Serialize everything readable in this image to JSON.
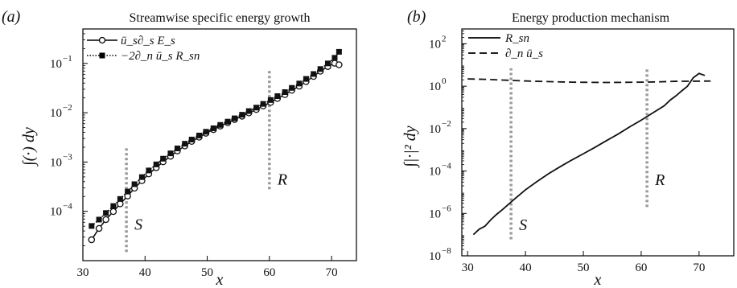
{
  "chart_data": [
    {
      "panel": "(a)",
      "type": "line",
      "title": "Streamwise specific energy growth",
      "xlabel": "x",
      "ylabel": "∫(·) dy",
      "xlim": [
        30,
        74
      ],
      "ylim": [
        1e-05,
        0.5
      ],
      "yscale": "log",
      "xticks": [
        30,
        40,
        50,
        60,
        70
      ],
      "yticks": [
        0.0001,
        0.001,
        0.01,
        0.1
      ],
      "ytick_labels": [
        [
          "10",
          "−4"
        ],
        [
          "10",
          "−3"
        ],
        [
          "10",
          "−2"
        ],
        [
          "10",
          "−1"
        ]
      ],
      "grid": false,
      "legend_position": "top-left",
      "series": [
        {
          "name": "ū_s∂_s E_s",
          "style": "solid-open-circle",
          "color": "#111111",
          "x": [
            31.4,
            32.6,
            33.7,
            34.9,
            36.0,
            37.2,
            38.3,
            39.5,
            40.6,
            41.8,
            42.9,
            44.1,
            45.2,
            46.4,
            47.5,
            48.7,
            49.8,
            51.0,
            52.1,
            53.3,
            54.4,
            55.6,
            56.7,
            57.9,
            59.0,
            60.2,
            61.3,
            62.5,
            63.6,
            64.8,
            65.9,
            67.1,
            68.2,
            69.4,
            70.5,
            71.2
          ],
          "y": [
            2.65e-05,
            4.5e-05,
            6.8e-05,
            9.9e-05,
            0.000142,
            0.000205,
            0.000295,
            0.000418,
            0.000575,
            0.000768,
            0.00101,
            0.00131,
            0.00168,
            0.00212,
            0.00262,
            0.00319,
            0.00384,
            0.00455,
            0.00536,
            0.00627,
            0.00728,
            0.0085,
            0.0099,
            0.0116,
            0.0137,
            0.0162,
            0.0195,
            0.0233,
            0.0285,
            0.0345,
            0.0429,
            0.0545,
            0.0695,
            0.0865,
            0.101,
            0.094
          ]
        },
        {
          "name": "−2∂_n ū_s R_sn",
          "style": "dotted-filled-square",
          "color": "#111111",
          "x": [
            31.4,
            32.6,
            33.7,
            34.9,
            36.0,
            37.2,
            38.3,
            39.5,
            40.6,
            41.8,
            42.9,
            44.1,
            45.2,
            46.4,
            47.5,
            48.7,
            49.8,
            51.0,
            52.1,
            53.3,
            54.4,
            55.6,
            56.7,
            57.9,
            59.0,
            60.2,
            61.3,
            62.5,
            63.6,
            64.8,
            65.9,
            67.1,
            68.2,
            69.4,
            70.5,
            71.2
          ],
          "y": [
            5.05e-05,
            6.8e-05,
            9.25e-05,
            0.000128,
            0.000178,
            0.000252,
            0.000355,
            0.000495,
            0.000675,
            0.000895,
            0.00117,
            0.0015,
            0.00189,
            0.00235,
            0.00286,
            0.00345,
            0.00411,
            0.00484,
            0.00566,
            0.0066,
            0.0077,
            0.0091,
            0.0108,
            0.0127,
            0.0151,
            0.0181,
            0.0217,
            0.0262,
            0.0319,
            0.0391,
            0.0485,
            0.061,
            0.077,
            0.1,
            0.13,
            0.172
          ]
        }
      ],
      "annotations": [
        {
          "text": "S",
          "x": 37.0,
          "line_y": [
            1.5e-05,
            0.0019
          ],
          "label_y": 5.5e-05
        },
        {
          "text": "R",
          "x": 60.0,
          "line_y": [
            0.00028,
            0.075
          ],
          "label_y": 0.00045
        }
      ]
    },
    {
      "panel": "(b)",
      "type": "line",
      "title": "Energy production mechanism",
      "xlabel": "x",
      "ylabel": "∫|·|² dy",
      "xlim": [
        29,
        76
      ],
      "ylim": [
        1e-08,
        500
      ],
      "yscale": "log",
      "xticks": [
        30,
        40,
        50,
        60,
        70
      ],
      "yticks": [
        1e-08,
        1e-06,
        0.0001,
        0.01,
        1,
        100
      ],
      "ytick_labels": [
        [
          "10",
          "−8"
        ],
        [
          "10",
          "−6"
        ],
        [
          "10",
          "−4"
        ],
        [
          "10",
          "−2"
        ],
        [
          "10",
          "0"
        ],
        [
          "10",
          "2"
        ]
      ],
      "grid": false,
      "legend_position": "top-left",
      "series": [
        {
          "name": "R_sn",
          "style": "solid",
          "color": "#111111",
          "x": [
            31.0,
            32.0,
            33.0,
            34.0,
            35.0,
            36.0,
            38.0,
            40.0,
            42.0,
            44.0,
            46.0,
            48.0,
            50.0,
            52.0,
            54.0,
            56.0,
            58.0,
            60.0,
            62.0,
            64.0,
            65.0,
            66.0,
            67.0,
            68.0,
            69.0,
            70.0,
            71.0
          ],
          "y": [
            1e-07,
            1.8e-07,
            2.5e-07,
            5e-07,
            9e-07,
            1.5e-06,
            4.5e-06,
            1.3e-05,
            3.2e-05,
            7.5e-05,
            0.00016,
            0.00033,
            0.00065,
            0.0013,
            0.0027,
            0.0055,
            0.012,
            0.025,
            0.055,
            0.12,
            0.22,
            0.35,
            0.6,
            1.0,
            2.5,
            4.0,
            3.2
          ]
        },
        {
          "name": "∂_n ū_s",
          "style": "dashed",
          "color": "#111111",
          "x": [
            30,
            33,
            36,
            39,
            42,
            45,
            48,
            51,
            54,
            57,
            60,
            63,
            66,
            69,
            72
          ],
          "y": [
            2.2,
            2.1,
            1.95,
            1.8,
            1.7,
            1.62,
            1.55,
            1.52,
            1.5,
            1.52,
            1.55,
            1.6,
            1.7,
            1.72,
            1.75
          ]
        }
      ],
      "annotations": [
        {
          "text": "S",
          "x": 37.5,
          "line_y": [
            6e-08,
            7
          ],
          "label_y": 3e-07
        },
        {
          "text": "R",
          "x": 61.0,
          "line_y": [
            2e-06,
            7
          ],
          "label_y": 4e-05
        }
      ]
    }
  ]
}
